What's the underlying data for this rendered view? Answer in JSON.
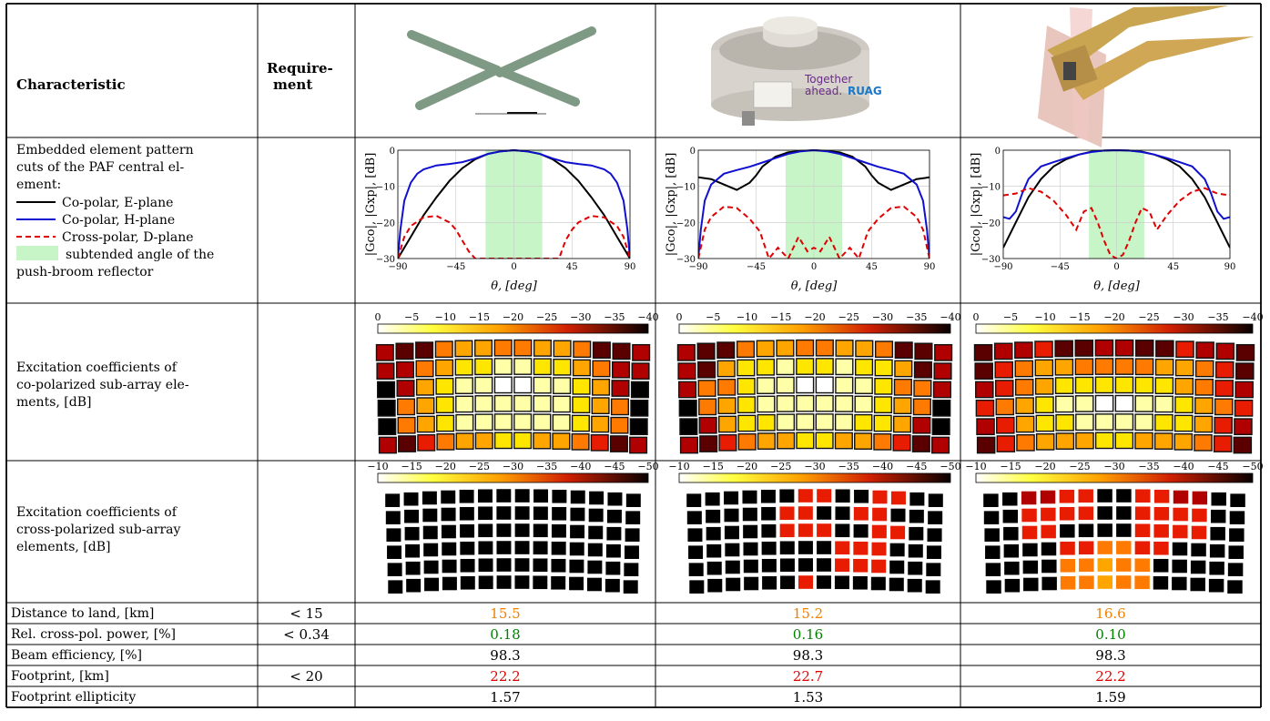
{
  "table": {
    "header": {
      "characteristic": "Characteristic",
      "requirement": "Require-\nment"
    },
    "rows": {
      "pattern": {
        "label": [
          "Embedded element pattern",
          "cuts of the PAF central el-",
          "ement:"
        ],
        "legend": [
          {
            "text": "Co-polar, E-plane",
            "style": "solid",
            "color": "#000000"
          },
          {
            "text": "Co-polar, H-plane",
            "style": "solid",
            "color": "#1010d0"
          },
          {
            "text": "Cross-polar, D-plane",
            "style": "dashed",
            "color": "#e00000"
          },
          {
            "text": "subtended angle of the",
            "style": "patch",
            "color": "#c8f5c8"
          }
        ],
        "legend_tail": "push-broom reflector"
      },
      "copol": {
        "label": [
          "Excitation coefficients of",
          "co-polarized sub-array ele-",
          "ments, [dB]"
        ],
        "colorbar_ticks": [
          "0",
          "−5",
          "−10",
          "−15",
          "−20",
          "−25",
          "−30",
          "−35",
          "−40"
        ]
      },
      "xpol": {
        "label": [
          "Excitation coefficients of",
          "cross-polarized sub-array",
          "elements, [dB]"
        ],
        "colorbar_ticks": [
          "−10",
          "−15",
          "−20",
          "−25",
          "−30",
          "−35",
          "−40",
          "−45",
          "−50"
        ]
      },
      "metrics": [
        {
          "label": "Distance to land, [km]",
          "requirement": "< 15",
          "values": [
            "15.5",
            "15.2",
            "16.6"
          ],
          "color": "#f08000"
        },
        {
          "label": "Rel. cross-pol. power, [%]",
          "requirement": "< 0.34",
          "values": [
            "0.18",
            "0.16",
            "0.10"
          ],
          "color": "#008000"
        },
        {
          "label": "Beam efficiency, [%]",
          "requirement": "",
          "values": [
            "98.3",
            "98.3",
            "98.3"
          ],
          "color": "#000000"
        },
        {
          "label": "Footprint, [km]",
          "requirement": "< 20",
          "values": [
            "22.2",
            "22.7",
            "22.2"
          ],
          "color": "#e00000"
        },
        {
          "label": "Footprint ellipticity",
          "requirement": "",
          "values": [
            "1.57",
            "1.53",
            "1.59"
          ],
          "color": "#000000"
        }
      ]
    },
    "antenna2_logo": {
      "line1": "Together",
      "line2": "ahead.",
      "brand": "RUAG"
    }
  },
  "chart_data": [
    {
      "type": "line",
      "xlabel": "θ, [deg]",
      "ylabel": "|Gco|, |Gxp|, [dB]",
      "xlim": [
        -90,
        90
      ],
      "ylim": [
        -30,
        0
      ],
      "xticks": [
        "−90",
        "−45",
        "0",
        "45",
        "90"
      ],
      "yticks": [
        "0",
        "−10",
        "−20",
        "−30"
      ],
      "shaded": [
        -22,
        22
      ],
      "series": [
        {
          "style": "E",
          "x": [
            -90,
            -80,
            -70,
            -60,
            -50,
            -40,
            -30,
            -20,
            -10,
            0,
            10,
            20,
            30,
            40,
            50,
            60,
            70,
            80,
            90
          ],
          "y": [
            -30,
            -24,
            -18,
            -13,
            -8.5,
            -5,
            -2.5,
            -1,
            -0.3,
            0,
            -0.3,
            -1,
            -2.5,
            -5,
            -8.5,
            -13,
            -18,
            -24,
            -30
          ]
        },
        {
          "style": "H",
          "x": [
            -90,
            -88,
            -85,
            -80,
            -75,
            -70,
            -60,
            -50,
            -40,
            -30,
            -20,
            -10,
            0,
            10,
            20,
            30,
            40,
            50,
            60,
            70,
            75,
            80,
            85,
            88,
            90
          ],
          "y": [
            -30,
            -22,
            -14,
            -9,
            -6.5,
            -5.3,
            -4.2,
            -3.8,
            -3.3,
            -2.3,
            -1,
            -0.3,
            0,
            -0.3,
            -1,
            -2.3,
            -3.3,
            -3.8,
            -4.2,
            -5.3,
            -6.5,
            -9,
            -14,
            -22,
            -30
          ]
        },
        {
          "style": "D",
          "x": [
            -90,
            -85,
            -80,
            -70,
            -60,
            -50,
            -45,
            -40,
            -35,
            -30,
            -25,
            35,
            40,
            45,
            50,
            60,
            70,
            80,
            85,
            90
          ],
          "y": [
            -30,
            -24,
            -21,
            -18.6,
            -18.2,
            -20,
            -22,
            -25,
            -28,
            -30,
            -30,
            -30,
            -25,
            -22,
            -20,
            -18.2,
            -18.6,
            -21,
            -24,
            -30
          ]
        }
      ]
    },
    {
      "type": "line",
      "xlabel": "θ, [deg]",
      "ylabel": "|Gco|, |Gxp|, [dB]",
      "xlim": [
        -90,
        90
      ],
      "ylim": [
        -30,
        0
      ],
      "xticks": [
        "−90",
        "−45",
        "0",
        "45",
        "90"
      ],
      "yticks": [
        "0",
        "−10",
        "−20",
        "−30"
      ],
      "shaded": [
        -22,
        22
      ],
      "series": [
        {
          "style": "E",
          "x": [
            -90,
            -80,
            -70,
            -60,
            -50,
            -45,
            -40,
            -30,
            -20,
            -10,
            0,
            10,
            20,
            30,
            40,
            45,
            50,
            60,
            70,
            80,
            90
          ],
          "y": [
            -7.5,
            -8,
            -9.5,
            -11,
            -9,
            -7,
            -4.5,
            -1.8,
            -0.6,
            -0.2,
            0,
            -0.2,
            -0.6,
            -1.8,
            -4.5,
            -7,
            -9,
            -11,
            -9.5,
            -8,
            -7.5
          ]
        },
        {
          "style": "H",
          "x": [
            -90,
            -88,
            -85,
            -80,
            -70,
            -60,
            -50,
            -40,
            -30,
            -20,
            -10,
            0,
            10,
            20,
            30,
            40,
            50,
            60,
            70,
            80,
            85,
            88,
            90
          ],
          "y": [
            -30,
            -22,
            -14,
            -9.5,
            -6.5,
            -5.5,
            -4.6,
            -3.4,
            -2.2,
            -1,
            -0.3,
            0,
            -0.3,
            -1,
            -2.2,
            -3.4,
            -4.6,
            -5.5,
            -6.5,
            -9.5,
            -14,
            -22,
            -30
          ]
        },
        {
          "style": "D",
          "x": [
            -90,
            -85,
            -80,
            -70,
            -60,
            -50,
            -42,
            -35,
            -28,
            -20,
            -12,
            -5,
            0,
            5,
            12,
            20,
            28,
            35,
            42,
            50,
            60,
            70,
            80,
            85,
            90
          ],
          "y": [
            -30,
            -22,
            -18.5,
            -15.6,
            -16,
            -19,
            -22.5,
            -30,
            -27,
            -30,
            -24,
            -28,
            -27,
            -28,
            -24,
            -30,
            -27,
            -30,
            -22.5,
            -19,
            -16,
            -15.6,
            -18.5,
            -22,
            -30
          ]
        }
      ]
    },
    {
      "type": "line",
      "xlabel": "θ, [deg]",
      "ylabel": "|Gco|, |Gxp|, [dB]",
      "xlim": [
        -90,
        90
      ],
      "ylim": [
        -30,
        0
      ],
      "xticks": [
        "−90",
        "−45",
        "0",
        "45",
        "90"
      ],
      "yticks": [
        "0",
        "−10",
        "−20",
        "−30"
      ],
      "shaded": [
        -22,
        22
      ],
      "series": [
        {
          "style": "E",
          "x": [
            -90,
            -80,
            -70,
            -60,
            -50,
            -40,
            -30,
            -20,
            -10,
            0,
            10,
            20,
            30,
            40,
            50,
            60,
            70,
            80,
            90
          ],
          "y": [
            -27,
            -20,
            -13,
            -8,
            -4.5,
            -2.5,
            -1.2,
            -0.4,
            -0.1,
            0,
            -0.1,
            -0.4,
            -1.2,
            -2.5,
            -4.5,
            -8,
            -13,
            -20,
            -27
          ]
        },
        {
          "style": "H",
          "x": [
            -90,
            -85,
            -80,
            -75,
            -70,
            -60,
            -50,
            -40,
            -30,
            -20,
            -10,
            0,
            10,
            20,
            30,
            40,
            50,
            60,
            70,
            75,
            80,
            85,
            90
          ],
          "y": [
            -18.5,
            -19,
            -17,
            -12,
            -8,
            -4.5,
            -3.3,
            -2.2,
            -1.2,
            -0.5,
            -0.1,
            0,
            -0.1,
            -0.5,
            -1.2,
            -2.2,
            -3.3,
            -4.5,
            -8,
            -12,
            -17,
            -19,
            -18.5
          ]
        },
        {
          "style": "D",
          "x": [
            -90,
            -80,
            -70,
            -60,
            -50,
            -40,
            -32,
            -26,
            -20,
            -15,
            -10,
            -5,
            0,
            5,
            10,
            15,
            20,
            26,
            32,
            40,
            50,
            60,
            70,
            80,
            90
          ],
          "y": [
            -12.5,
            -12,
            -10.5,
            -11.5,
            -14,
            -18,
            -22,
            -17,
            -16,
            -20,
            -25,
            -29,
            -30,
            -29,
            -25,
            -20,
            -16,
            -17,
            -22,
            -18,
            -14,
            -11.5,
            -10.5,
            -12,
            -12.5
          ]
        }
      ]
    }
  ]
}
